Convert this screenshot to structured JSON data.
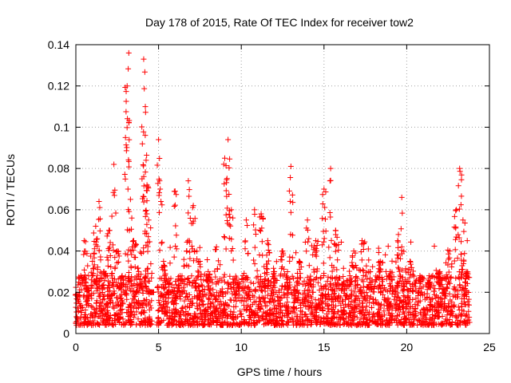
{
  "chart_data": {
    "type": "scatter",
    "title": "Day 178 of 2015, Rate Of TEC Index for receiver tow2",
    "xlabel": "GPS time / hours",
    "ylabel": "ROTI / TECUs",
    "xlim": [
      0,
      25
    ],
    "ylim": [
      0,
      0.14
    ],
    "x_ticks": [
      0,
      5,
      10,
      15,
      20,
      25
    ],
    "y_ticks": [
      0,
      0.02,
      0.04,
      0.06,
      0.08,
      0.1,
      0.12,
      0.14
    ],
    "x_tick_labels": [
      "0",
      "5",
      "10",
      "15",
      "20",
      "25"
    ],
    "y_tick_labels": [
      "0",
      "0.02",
      "0.04",
      "0.06",
      "0.08",
      "0.1",
      "0.12",
      "0.14"
    ],
    "grid": true,
    "marker": "+",
    "marker_color": "#ff0000",
    "series": [
      {
        "name": "ROTI",
        "x": [
          0.1,
          0.3,
          0.5,
          0.7,
          1.0,
          1.2,
          1.4,
          1.7,
          2.0,
          2.3,
          2.5,
          2.8,
          3.0,
          3.1,
          3.2,
          3.3,
          3.5,
          3.8,
          4.0,
          4.1,
          4.2,
          4.3,
          4.4,
          4.6,
          5.0,
          5.1,
          5.3,
          5.6,
          6.0,
          6.3,
          6.8,
          7.1,
          7.5,
          8.0,
          8.5,
          9.0,
          9.2,
          9.4,
          9.8,
          10.3,
          10.8,
          11.2,
          11.6,
          12.0,
          12.5,
          13.0,
          13.5,
          14.0,
          14.5,
          15.0,
          15.4,
          15.7,
          16.2,
          16.8,
          17.3,
          17.8,
          18.4,
          19.0,
          19.5,
          19.7,
          20.2,
          20.8,
          21.4,
          22.0,
          22.6,
          23.0,
          23.2,
          23.4,
          23.6
        ],
        "y": [
          0.018,
          0.028,
          0.045,
          0.022,
          0.035,
          0.052,
          0.064,
          0.03,
          0.05,
          0.082,
          0.04,
          0.028,
          0.095,
          0.12,
          0.136,
          0.065,
          0.045,
          0.03,
          0.075,
          0.133,
          0.11,
          0.072,
          0.055,
          0.02,
          0.094,
          0.07,
          0.035,
          0.02,
          0.069,
          0.028,
          0.074,
          0.062,
          0.035,
          0.03,
          0.042,
          0.085,
          0.094,
          0.06,
          0.025,
          0.055,
          0.06,
          0.058,
          0.045,
          0.03,
          0.04,
          0.081,
          0.035,
          0.055,
          0.045,
          0.07,
          0.08,
          0.05,
          0.025,
          0.04,
          0.045,
          0.03,
          0.035,
          0.03,
          0.048,
          0.066,
          0.035,
          0.028,
          0.025,
          0.03,
          0.04,
          0.06,
          0.08,
          0.055,
          0.03
        ],
        "baseline_range": [
          0.004,
          0.028
        ]
      }
    ]
  }
}
